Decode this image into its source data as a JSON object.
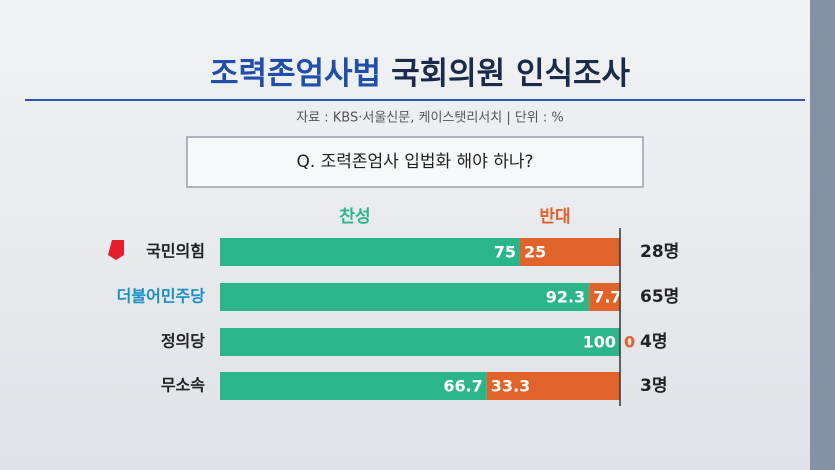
{
  "chart_data": {
    "type": "stacked-bar-horizontal",
    "title": {
      "highlight": "조력존엄사법",
      "rest": "국회의원 인식조사"
    },
    "subtitle": "자료 : KBS·서울신문, 케이스탯리서치  |  단위 : %",
    "question": "Q. 조력존엄사 입법화 해야 하나?",
    "categories": [
      "국민의힘",
      "더불어민주당",
      "정의당",
      "무소속"
    ],
    "category_colors": [
      "#222222",
      "#1a8fc4",
      "#222222",
      "#222222"
    ],
    "series": [
      {
        "name": "찬성",
        "color": "#2db58a",
        "values": [
          75,
          92.3,
          100,
          66.7
        ]
      },
      {
        "name": "반대",
        "color": "#e0632a",
        "values": [
          25,
          7.7,
          0,
          33.3
        ]
      }
    ],
    "count_labels": [
      "28명",
      "65명",
      "4명",
      "3명"
    ],
    "xlim": [
      0,
      100
    ]
  }
}
